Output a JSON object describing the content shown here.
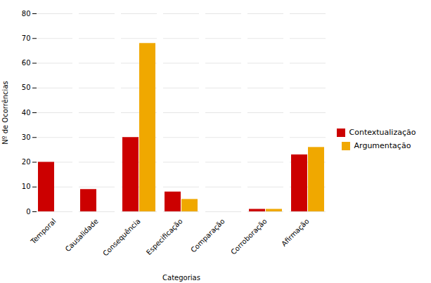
{
  "chart_data": {
    "type": "bar",
    "categories": [
      "Temporal",
      "Causalidade",
      "Consequência",
      "Especificação",
      "Comparação",
      "Corroboração",
      "Afirmação"
    ],
    "series": [
      {
        "name": "Contextualização",
        "color": "#cc0000",
        "values": [
          20,
          9,
          30,
          8,
          0,
          1,
          23
        ]
      },
      {
        "name": "Argumentação",
        "color": "#f0a800",
        "values": [
          0,
          0,
          68,
          5,
          0,
          1,
          26
        ]
      }
    ],
    "xlabel": "Categorias",
    "ylabel": "Nº de Ocorrências",
    "ylim": [
      0,
      80
    ],
    "yticks": [
      0,
      10,
      20,
      30,
      40,
      50,
      60,
      70,
      80
    ],
    "grid": true,
    "legend": "right"
  }
}
